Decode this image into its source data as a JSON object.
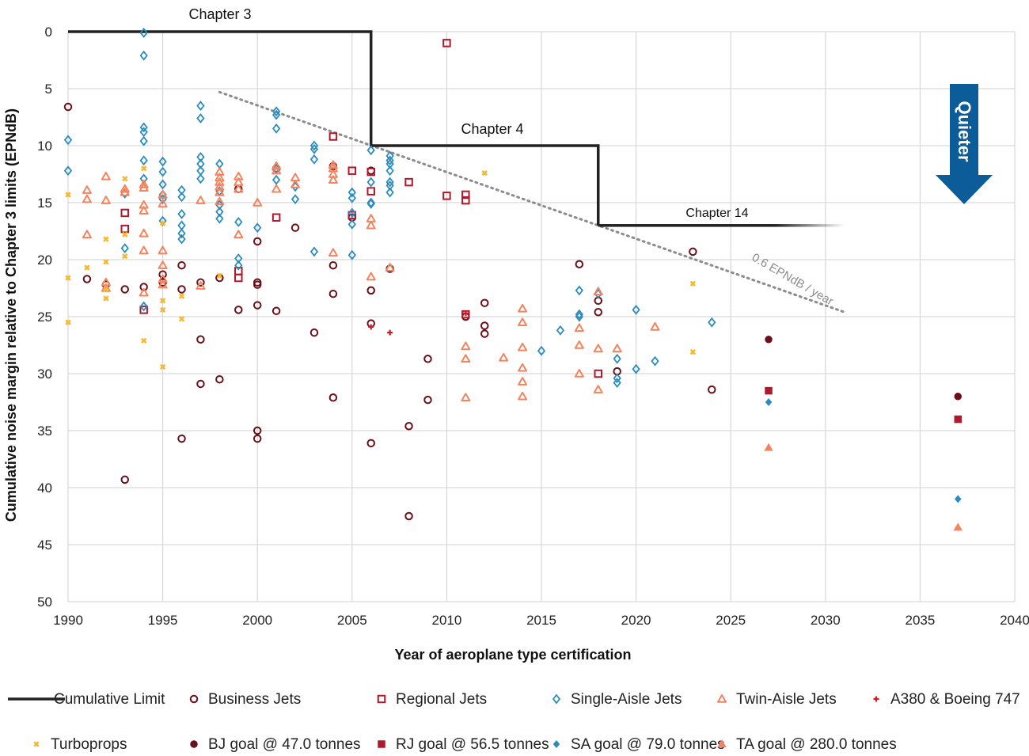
{
  "chart_data": {
    "type": "scatter",
    "xlabel": "Year of aeroplane type certification",
    "ylabel": "Cumulative noise margin relative to Chapter 3 limits (EPNdB)",
    "xlim": [
      1990,
      2040
    ],
    "ylim": [
      0,
      50
    ],
    "y_inverted": true,
    "x_ticks": [
      "1990",
      "1995",
      "2000",
      "2005",
      "2010",
      "2015",
      "2020",
      "2025",
      "2030",
      "2035",
      "2040"
    ],
    "y_ticks": [
      "0",
      "5",
      "10",
      "15",
      "20",
      "25",
      "30",
      "35",
      "40",
      "45",
      "50"
    ],
    "grid": true,
    "legend_position": "bottom",
    "quieter_label": "Quieter",
    "colors": {
      "limit": "#222222",
      "business": "#6b0f1a",
      "regional": "#b2182b",
      "single_aisle": "#2b8cbe",
      "twin_aisle": "#f4845f",
      "a380": "#d7191c",
      "turboprop": "#f5b82e",
      "trend": "#8c8c8c",
      "quieter_arrow": "#0b5c99"
    },
    "annotations": {
      "chapter3": "Chapter 3",
      "chapter4": "Chapter 4",
      "chapter14": "Chapter 14",
      "trend": "0.6 EPNdB / year"
    },
    "limit_line": [
      [
        1990,
        0
      ],
      [
        2006,
        0
      ],
      [
        2006,
        10
      ],
      [
        2018,
        10
      ],
      [
        2018,
        17
      ],
      [
        2031,
        17
      ]
    ],
    "trend_line": [
      [
        1998,
        5.3
      ],
      [
        2031,
        24.6
      ]
    ],
    "series": [
      {
        "name": "Business Jets",
        "marker": "circle-open",
        "color": "#6b0f1a",
        "points": [
          [
            1990,
            6.6
          ],
          [
            1991,
            21.7
          ],
          [
            1992,
            22.2
          ],
          [
            1993,
            22.6
          ],
          [
            1993,
            39.3
          ],
          [
            1994,
            22.4
          ],
          [
            1995,
            21.3
          ],
          [
            1995,
            22.0
          ],
          [
            1996,
            20.5
          ],
          [
            1996,
            22.6
          ],
          [
            1996,
            35.7
          ],
          [
            1997,
            22.0
          ],
          [
            1997,
            27.0
          ],
          [
            1997,
            30.9
          ],
          [
            1998,
            21.6
          ],
          [
            1998,
            30.5
          ],
          [
            1999,
            13.8
          ],
          [
            1999,
            24.4
          ],
          [
            2000,
            22.0
          ],
          [
            2000,
            22.2
          ],
          [
            2000,
            18.4
          ],
          [
            2000,
            24.0
          ],
          [
            2000,
            35.0
          ],
          [
            2000,
            35.7
          ],
          [
            2001,
            24.5
          ],
          [
            2001,
            12.0
          ],
          [
            2002,
            17.2
          ],
          [
            2003,
            26.4
          ],
          [
            2004,
            20.5
          ],
          [
            2004,
            23.0
          ],
          [
            2004,
            32.1
          ],
          [
            2004,
            11.8
          ],
          [
            2005,
            16.3
          ],
          [
            2006,
            22.7
          ],
          [
            2006,
            25.6
          ],
          [
            2006,
            36.1
          ],
          [
            2006,
            12.2
          ],
          [
            2007,
            20.8
          ],
          [
            2008,
            34.6
          ],
          [
            2008,
            42.5
          ],
          [
            2009,
            28.7
          ],
          [
            2009,
            32.3
          ],
          [
            2011,
            25.0
          ],
          [
            2012,
            23.8
          ],
          [
            2012,
            25.8
          ],
          [
            2012,
            26.5
          ],
          [
            2017,
            20.4
          ],
          [
            2018,
            23.6
          ],
          [
            2018,
            24.6
          ],
          [
            2019,
            29.8
          ],
          [
            2023,
            19.3
          ],
          [
            2024,
            31.4
          ]
        ]
      },
      {
        "name": "Regional Jets",
        "marker": "square-open",
        "color": "#b2182b",
        "points": [
          [
            1993,
            15.9
          ],
          [
            1993,
            17.3
          ],
          [
            1994,
            24.4
          ],
          [
            1999,
            21.0
          ],
          [
            1999,
            21.6
          ],
          [
            2001,
            16.3
          ],
          [
            2004,
            9.2
          ],
          [
            2005,
            12.2
          ],
          [
            2005,
            16.1
          ],
          [
            2006,
            12.3
          ],
          [
            2006,
            14.0
          ],
          [
            2008,
            13.2
          ],
          [
            2010,
            1.0
          ],
          [
            2010,
            14.4
          ],
          [
            2011,
            14.3
          ],
          [
            2011,
            14.8
          ],
          [
            2011,
            24.8
          ],
          [
            2018,
            30.0
          ]
        ]
      },
      {
        "name": "Single-Aisle Jets",
        "marker": "diamond-open",
        "color": "#2b8cbe",
        "points": [
          [
            1990,
            9.5
          ],
          [
            1990,
            12.2
          ],
          [
            1993,
            14.2
          ],
          [
            1993,
            19.0
          ],
          [
            1994,
            0.1
          ],
          [
            1994,
            2.1
          ],
          [
            1994,
            8.4
          ],
          [
            1994,
            8.8
          ],
          [
            1994,
            9.6
          ],
          [
            1994,
            11.3
          ],
          [
            1994,
            12.9
          ],
          [
            1994,
            24.1
          ],
          [
            1995,
            11.4
          ],
          [
            1995,
            12.3
          ],
          [
            1995,
            13.4
          ],
          [
            1995,
            14.3
          ],
          [
            1995,
            14.7
          ],
          [
            1995,
            16.6
          ],
          [
            1996,
            13.9
          ],
          [
            1996,
            14.5
          ],
          [
            1996,
            16.0
          ],
          [
            1996,
            17.0
          ],
          [
            1996,
            17.7
          ],
          [
            1996,
            18.2
          ],
          [
            1997,
            6.5
          ],
          [
            1997,
            7.6
          ],
          [
            1997,
            11.0
          ],
          [
            1997,
            11.6
          ],
          [
            1997,
            12.2
          ],
          [
            1997,
            12.9
          ],
          [
            1998,
            11.6
          ],
          [
            1998,
            14.0
          ],
          [
            1998,
            15.2
          ],
          [
            1998,
            15.8
          ],
          [
            1998,
            16.4
          ],
          [
            1999,
            16.7
          ],
          [
            1999,
            19.9
          ],
          [
            1999,
            20.5
          ],
          [
            2000,
            17.2
          ],
          [
            2001,
            7.0
          ],
          [
            2001,
            7.3
          ],
          [
            2001,
            8.5
          ],
          [
            2001,
            12.0
          ],
          [
            2001,
            13.0
          ],
          [
            2002,
            13.6
          ],
          [
            2002,
            14.7
          ],
          [
            2003,
            10.0
          ],
          [
            2003,
            10.3
          ],
          [
            2003,
            11.2
          ],
          [
            2003,
            19.3
          ],
          [
            2005,
            14.1
          ],
          [
            2005,
            14.6
          ],
          [
            2005,
            15.9
          ],
          [
            2005,
            16.9
          ],
          [
            2005,
            19.6
          ],
          [
            2006,
            10.4
          ],
          [
            2006,
            13.2
          ],
          [
            2006,
            15.0
          ],
          [
            2006,
            15.1
          ],
          [
            2007,
            10.9
          ],
          [
            2007,
            11.3
          ],
          [
            2007,
            11.6
          ],
          [
            2007,
            12.2
          ],
          [
            2007,
            13.2
          ],
          [
            2007,
            13.5
          ],
          [
            2007,
            14.1
          ],
          [
            2015,
            28.0
          ],
          [
            2016,
            26.2
          ],
          [
            2017,
            22.7
          ],
          [
            2017,
            24.8
          ],
          [
            2017,
            25.0
          ],
          [
            2018,
            23.0
          ],
          [
            2019,
            28.7
          ],
          [
            2019,
            30.4
          ],
          [
            2019,
            30.8
          ],
          [
            2020,
            24.4
          ],
          [
            2020,
            29.6
          ],
          [
            2021,
            28.9
          ],
          [
            2024,
            25.5
          ]
        ]
      },
      {
        "name": "Twin-Aisle Jets",
        "marker": "triangle-open",
        "color": "#f4845f",
        "points": [
          [
            1991,
            13.9
          ],
          [
            1991,
            14.7
          ],
          [
            1991,
            17.8
          ],
          [
            1992,
            12.7
          ],
          [
            1992,
            14.8
          ],
          [
            1992,
            22.0
          ],
          [
            1992,
            22.5
          ],
          [
            1993,
            13.8
          ],
          [
            1993,
            14.1
          ],
          [
            1994,
            13.4
          ],
          [
            1994,
            13.7
          ],
          [
            1994,
            15.2
          ],
          [
            1994,
            15.7
          ],
          [
            1994,
            17.7
          ],
          [
            1994,
            19.2
          ],
          [
            1994,
            22.9
          ],
          [
            1995,
            14.3
          ],
          [
            1995,
            15.1
          ],
          [
            1995,
            19.2
          ],
          [
            1995,
            20.5
          ],
          [
            1995,
            21.7
          ],
          [
            1995,
            22.2
          ],
          [
            1997,
            14.8
          ],
          [
            1997,
            22.3
          ],
          [
            1998,
            12.3
          ],
          [
            1998,
            12.8
          ],
          [
            1998,
            13.2
          ],
          [
            1998,
            13.6
          ],
          [
            1998,
            14.1
          ],
          [
            1998,
            14.9
          ],
          [
            1999,
            12.7
          ],
          [
            1999,
            13.2
          ],
          [
            1999,
            13.8
          ],
          [
            1999,
            17.8
          ],
          [
            2000,
            15.0
          ],
          [
            2001,
            11.8
          ],
          [
            2001,
            12.2
          ],
          [
            2001,
            13.8
          ],
          [
            2002,
            12.8
          ],
          [
            2002,
            13.4
          ],
          [
            2004,
            11.7
          ],
          [
            2004,
            12.0
          ],
          [
            2004,
            12.5
          ],
          [
            2004,
            13.0
          ],
          [
            2004,
            19.4
          ],
          [
            2006,
            16.4
          ],
          [
            2006,
            17.0
          ],
          [
            2006,
            21.5
          ],
          [
            2007,
            20.7
          ],
          [
            2011,
            27.6
          ],
          [
            2011,
            28.7
          ],
          [
            2011,
            32.1
          ],
          [
            2013,
            28.6
          ],
          [
            2014,
            24.3
          ],
          [
            2014,
            25.5
          ],
          [
            2014,
            27.7
          ],
          [
            2014,
            29.5
          ],
          [
            2014,
            30.7
          ],
          [
            2014,
            32.0
          ],
          [
            2017,
            26.0
          ],
          [
            2017,
            27.5
          ],
          [
            2017,
            30.0
          ],
          [
            2018,
            22.8
          ],
          [
            2018,
            27.8
          ],
          [
            2018,
            31.4
          ],
          [
            2019,
            27.8
          ],
          [
            2021,
            25.9
          ]
        ]
      },
      {
        "name": "A380 & Boeing 747",
        "marker": "plus",
        "color": "#d7191c",
        "points": [
          [
            2006,
            25.9
          ],
          [
            2007,
            26.4
          ],
          [
            2011,
            24.7
          ]
        ]
      },
      {
        "name": "Turboprops",
        "marker": "x",
        "color": "#f5b82e",
        "points": [
          [
            1990,
            14.3
          ],
          [
            1990,
            21.6
          ],
          [
            1990,
            25.5
          ],
          [
            1991,
            20.7
          ],
          [
            1992,
            18.2
          ],
          [
            1992,
            20.2
          ],
          [
            1992,
            22.6
          ],
          [
            1992,
            23.4
          ],
          [
            1993,
            12.9
          ],
          [
            1993,
            17.8
          ],
          [
            1993,
            19.7
          ],
          [
            1994,
            12.0
          ],
          [
            1994,
            27.1
          ],
          [
            1995,
            16.8
          ],
          [
            1995,
            23.6
          ],
          [
            1995,
            24.4
          ],
          [
            1995,
            29.4
          ],
          [
            1996,
            23.2
          ],
          [
            1996,
            25.2
          ],
          [
            1998,
            21.4
          ],
          [
            2012,
            12.4
          ],
          [
            2023,
            22.1
          ],
          [
            2023,
            28.1
          ]
        ]
      },
      {
        "name": "BJ goal @ 47.0 tonnes",
        "marker": "circle-filled",
        "color": "#6b0f1a",
        "points": [
          [
            2027,
            27.0
          ],
          [
            2037,
            32.0
          ]
        ]
      },
      {
        "name": "RJ goal @ 56.5 tonnes",
        "marker": "square-filled",
        "color": "#b2182b",
        "points": [
          [
            2027,
            31.5
          ],
          [
            2037,
            34.0
          ]
        ]
      },
      {
        "name": "SA goal @ 79.0 tonnes",
        "marker": "diamond-filled",
        "color": "#2b8cbe",
        "points": [
          [
            2027,
            32.5
          ],
          [
            2037,
            41.0
          ]
        ]
      },
      {
        "name": "TA goal @ 280.0 tonnes",
        "marker": "triangle-filled",
        "color": "#f4845f",
        "points": [
          [
            2027,
            36.5
          ],
          [
            2037,
            43.5
          ]
        ]
      }
    ],
    "legend": [
      {
        "label": "Cumulative Limit",
        "marker": "line",
        "color": "#222222"
      },
      {
        "label": "Business Jets",
        "marker": "circle-open",
        "color": "#6b0f1a"
      },
      {
        "label": "Regional Jets",
        "marker": "square-open",
        "color": "#b2182b"
      },
      {
        "label": "Single-Aisle Jets",
        "marker": "diamond-open",
        "color": "#2b8cbe"
      },
      {
        "label": "Twin-Aisle Jets",
        "marker": "triangle-open",
        "color": "#f4845f"
      },
      {
        "label": "A380 & Boeing 747",
        "marker": "plus",
        "color": "#d7191c"
      },
      {
        "label": "Turboprops",
        "marker": "x",
        "color": "#f5b82e"
      },
      {
        "label": "BJ goal @ 47.0 tonnes",
        "marker": "circle-filled",
        "color": "#6b0f1a"
      },
      {
        "label": "RJ goal @ 56.5 tonnes",
        "marker": "square-filled",
        "color": "#b2182b"
      },
      {
        "label": "SA goal @ 79.0 tonnes",
        "marker": "diamond-filled",
        "color": "#2b8cbe"
      },
      {
        "label": "TA goal @ 280.0 tonnes",
        "marker": "triangle-filled",
        "color": "#f4845f"
      }
    ]
  }
}
